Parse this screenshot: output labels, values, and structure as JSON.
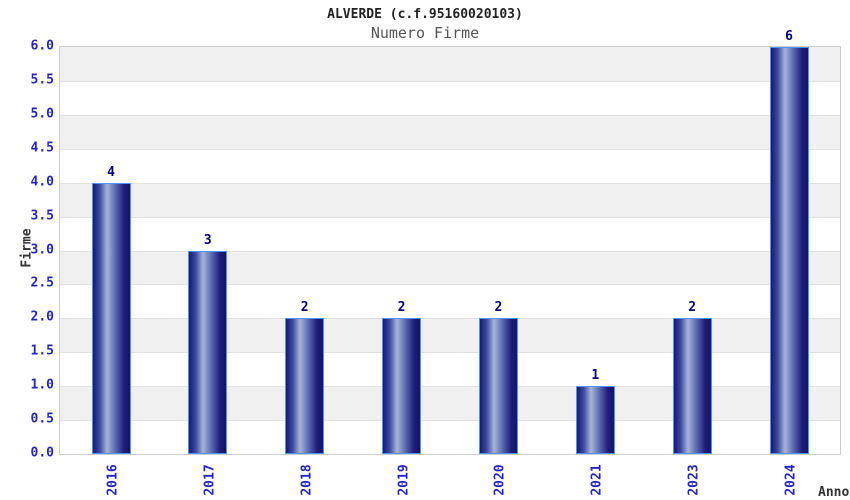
{
  "header": {
    "title": "ALVERDE (c.f.95160020103)",
    "subtitle": "Numero Firme"
  },
  "chart_data": {
    "type": "bar",
    "title": "ALVERDE (c.f.95160020103)",
    "subtitle": "Numero Firme",
    "categories": [
      "2016",
      "2017",
      "2018",
      "2019",
      "2020",
      "2021",
      "2023",
      "2024"
    ],
    "values": [
      4,
      3,
      2,
      2,
      2,
      1,
      2,
      6
    ],
    "xlabel": "Anno",
    "ylabel": "Firme",
    "ylim": [
      0,
      6
    ],
    "ytick_step": 0.5,
    "yticks": [
      "0.0",
      "0.5",
      "1.0",
      "1.5",
      "2.0",
      "2.5",
      "3.0",
      "3.5",
      "4.0",
      "4.5",
      "5.0",
      "5.5",
      "6.0"
    ],
    "grid": "alternating horizontal bands every 0.5",
    "legend": "none",
    "bar_label_position": "above"
  },
  "colors": {
    "tick_label": "#2424cc",
    "value_label": "#000080",
    "band_gray": "#f0f0f0",
    "band_white": "#ffffff",
    "gridline": "#e2e2e2",
    "plot_border": "#cccccc",
    "bar_border": "#4d94ff",
    "bar_gradient": [
      "#181874",
      "#3a4a9e",
      "#a9b4da",
      "#6272b4",
      "#1d1d7a",
      "#14146a"
    ],
    "bar_gradient_stops": [
      0,
      18,
      38,
      58,
      84,
      100
    ],
    "title_color": "#222222",
    "subtitle_color": "#555555",
    "axis_title_color": "#333333"
  }
}
